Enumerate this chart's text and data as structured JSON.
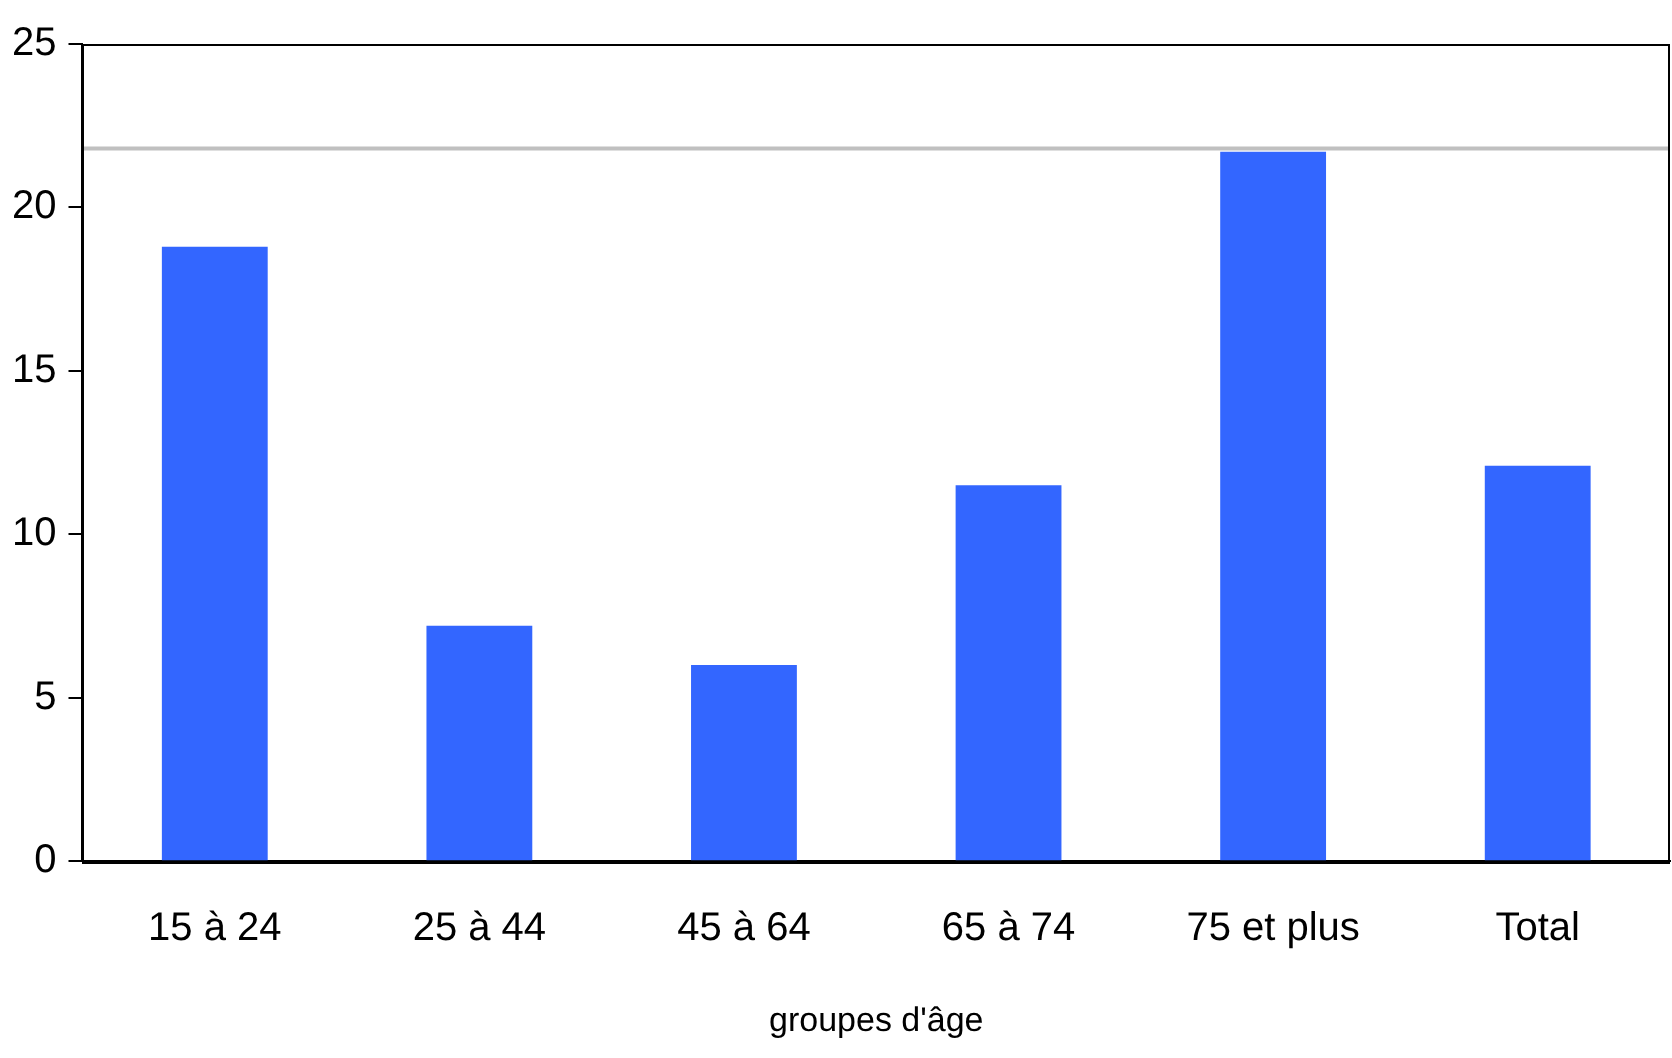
{
  "chart_data": {
    "type": "bar",
    "xlabel": "groupes d'âge",
    "categories": [
      "15 à 24",
      "25 à 44",
      "45 à 64",
      "65 à 74",
      "75 et plus",
      "Total"
    ],
    "values": [
      18.8,
      7.2,
      6.0,
      11.5,
      21.7,
      12.1
    ],
    "color": "#3366ff",
    "ylim": [
      0,
      25
    ],
    "yticks": [
      0,
      5,
      10,
      15,
      20,
      25
    ],
    "grid": false,
    "legend": false,
    "ref_lines": [
      {
        "axis": "y",
        "value": 21.8,
        "color": "#c0c0c0"
      }
    ]
  }
}
